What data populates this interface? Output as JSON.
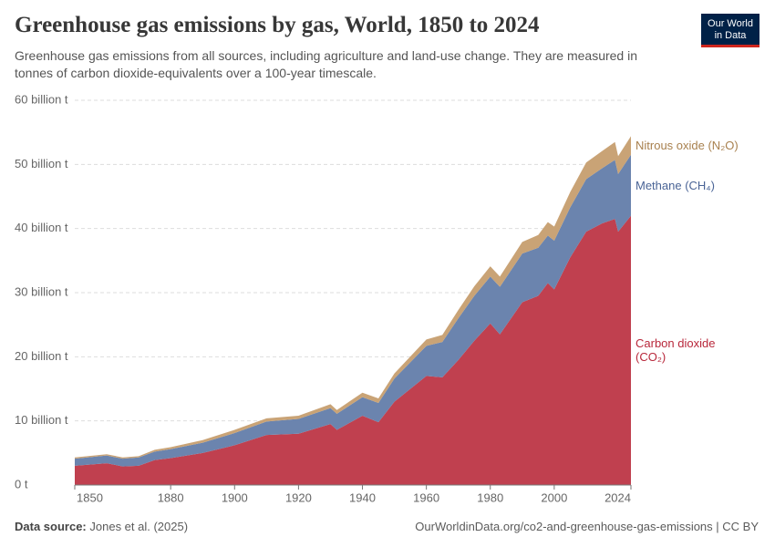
{
  "logo": [
    "Our World",
    "in Data"
  ],
  "chart_data": {
    "type": "stacked-area",
    "title": "Greenhouse gas emissions by gas, World, 1850 to 2024",
    "subtitle": "Greenhouse gas emissions from all sources, including agriculture and land-use change. They are measured in tonnes of carbon dioxide-equivalents over a 100-year timescale.",
    "source_label": "Data source:",
    "source": "Jones et al. (2025)",
    "url": "OurWorldinData.org/co2-and-greenhouse-gas-emissions | CC BY",
    "x": [
      1850,
      1860,
      1865,
      1870,
      1875,
      1880,
      1890,
      1900,
      1910,
      1920,
      1930,
      1932,
      1940,
      1945,
      1950,
      1960,
      1965,
      1970,
      1975,
      1980,
      1983,
      1990,
      1995,
      1998,
      2000,
      2005,
      2010,
      2015,
      2019,
      2020,
      2024
    ],
    "series": [
      {
        "name": "Carbon dioxide (CO₂)",
        "color": "#c0404f",
        "label_color": "#b8283b",
        "values": [
          3.0,
          3.4,
          2.9,
          3.0,
          3.9,
          4.2,
          5.0,
          6.2,
          7.8,
          8.0,
          9.5,
          8.6,
          10.8,
          9.8,
          13.0,
          17.0,
          16.8,
          19.5,
          22.5,
          25.2,
          23.5,
          28.5,
          29.5,
          31.5,
          30.5,
          35.5,
          39.5,
          40.8,
          41.5,
          39.5,
          42.0
        ]
      },
      {
        "name": "Methane (CH₄)",
        "color": "#6b84ae",
        "label_color": "#4a6496",
        "values": [
          1.1,
          1.2,
          1.2,
          1.3,
          1.3,
          1.4,
          1.6,
          1.9,
          2.1,
          2.3,
          2.5,
          2.5,
          2.9,
          3.0,
          3.6,
          4.7,
          5.5,
          6.5,
          7.0,
          7.3,
          7.4,
          7.6,
          7.5,
          7.4,
          7.6,
          7.8,
          8.2,
          8.6,
          9.2,
          9.0,
          9.5
        ]
      },
      {
        "name": "Nitrous oxide (N₂O)",
        "color": "#c9a376",
        "label_color": "#a8804e",
        "values": [
          0.2,
          0.2,
          0.2,
          0.2,
          0.3,
          0.3,
          0.4,
          0.5,
          0.5,
          0.5,
          0.6,
          0.6,
          0.7,
          0.7,
          0.8,
          1.0,
          1.1,
          1.3,
          1.5,
          1.6,
          1.6,
          1.8,
          2.0,
          2.1,
          2.2,
          2.4,
          2.6,
          2.7,
          2.8,
          2.8,
          2.9
        ]
      }
    ],
    "xlim": [
      1850,
      2024
    ],
    "xticks": [
      1850,
      1880,
      1900,
      1920,
      1940,
      1960,
      1980,
      2000,
      2024
    ],
    "ylim": [
      0,
      60
    ],
    "yticks": [
      {
        "value": 0,
        "label": "0 t"
      },
      {
        "value": 10,
        "label": "10 billion t"
      },
      {
        "value": 20,
        "label": "20 billion t"
      },
      {
        "value": 30,
        "label": "30 billion t"
      },
      {
        "value": 40,
        "label": "40 billion t"
      },
      {
        "value": 50,
        "label": "50 billion t"
      },
      {
        "value": 60,
        "label": "60 billion t"
      }
    ],
    "grid": true
  }
}
